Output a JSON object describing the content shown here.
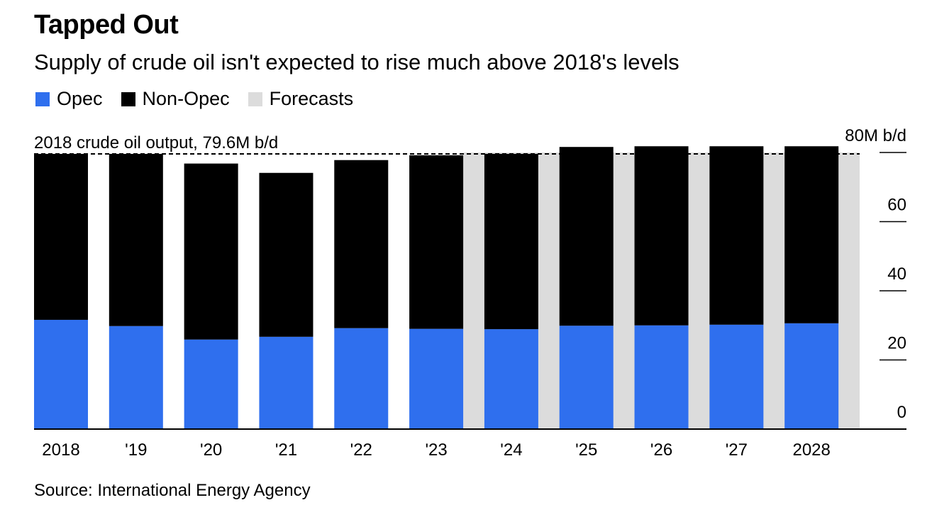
{
  "title": "Tapped Out",
  "subtitle": "Supply of crude oil isn't expected to rise much above 2018's levels",
  "legend": [
    {
      "label": "Opec",
      "color": "#2f6fee"
    },
    {
      "label": "Non-Opec",
      "color": "#000000"
    },
    {
      "label": "Forecasts",
      "color": "#dcdcdc"
    }
  ],
  "source": "Source: International Energy Agency",
  "chart_data": {
    "type": "bar",
    "stacked": true,
    "categories": [
      "2018",
      "'19",
      "'20",
      "'21",
      "'22",
      "'23",
      "'24",
      "'25",
      "'26",
      "'27",
      "2028"
    ],
    "series": [
      {
        "name": "Opec",
        "color": "#2f6fee",
        "values": [
          31.6,
          29.8,
          25.9,
          26.7,
          29.2,
          29.0,
          28.9,
          29.9,
          30.0,
          30.2,
          30.6
        ]
      },
      {
        "name": "Non-Opec",
        "color": "#000000",
        "values": [
          48.0,
          49.8,
          50.9,
          47.4,
          48.6,
          50.2,
          50.7,
          51.7,
          51.8,
          51.6,
          51.2
        ]
      }
    ],
    "forecast_categories": [
      "'24",
      "'25",
      "'26",
      "'27",
      "2028"
    ],
    "forecast_color": "#dcdcdc",
    "reference_line": {
      "value": 79.6,
      "label": "2018 crude oil output, 79.6M b/d"
    },
    "ylim": [
      0,
      80
    ],
    "yticks": [
      0,
      20,
      40,
      60,
      80
    ],
    "ytick_labels": [
      "0",
      "20",
      "40",
      "60",
      "80M b/d"
    ],
    "ylabel": "",
    "xlabel": "",
    "axis_side": "right",
    "grid": false
  }
}
